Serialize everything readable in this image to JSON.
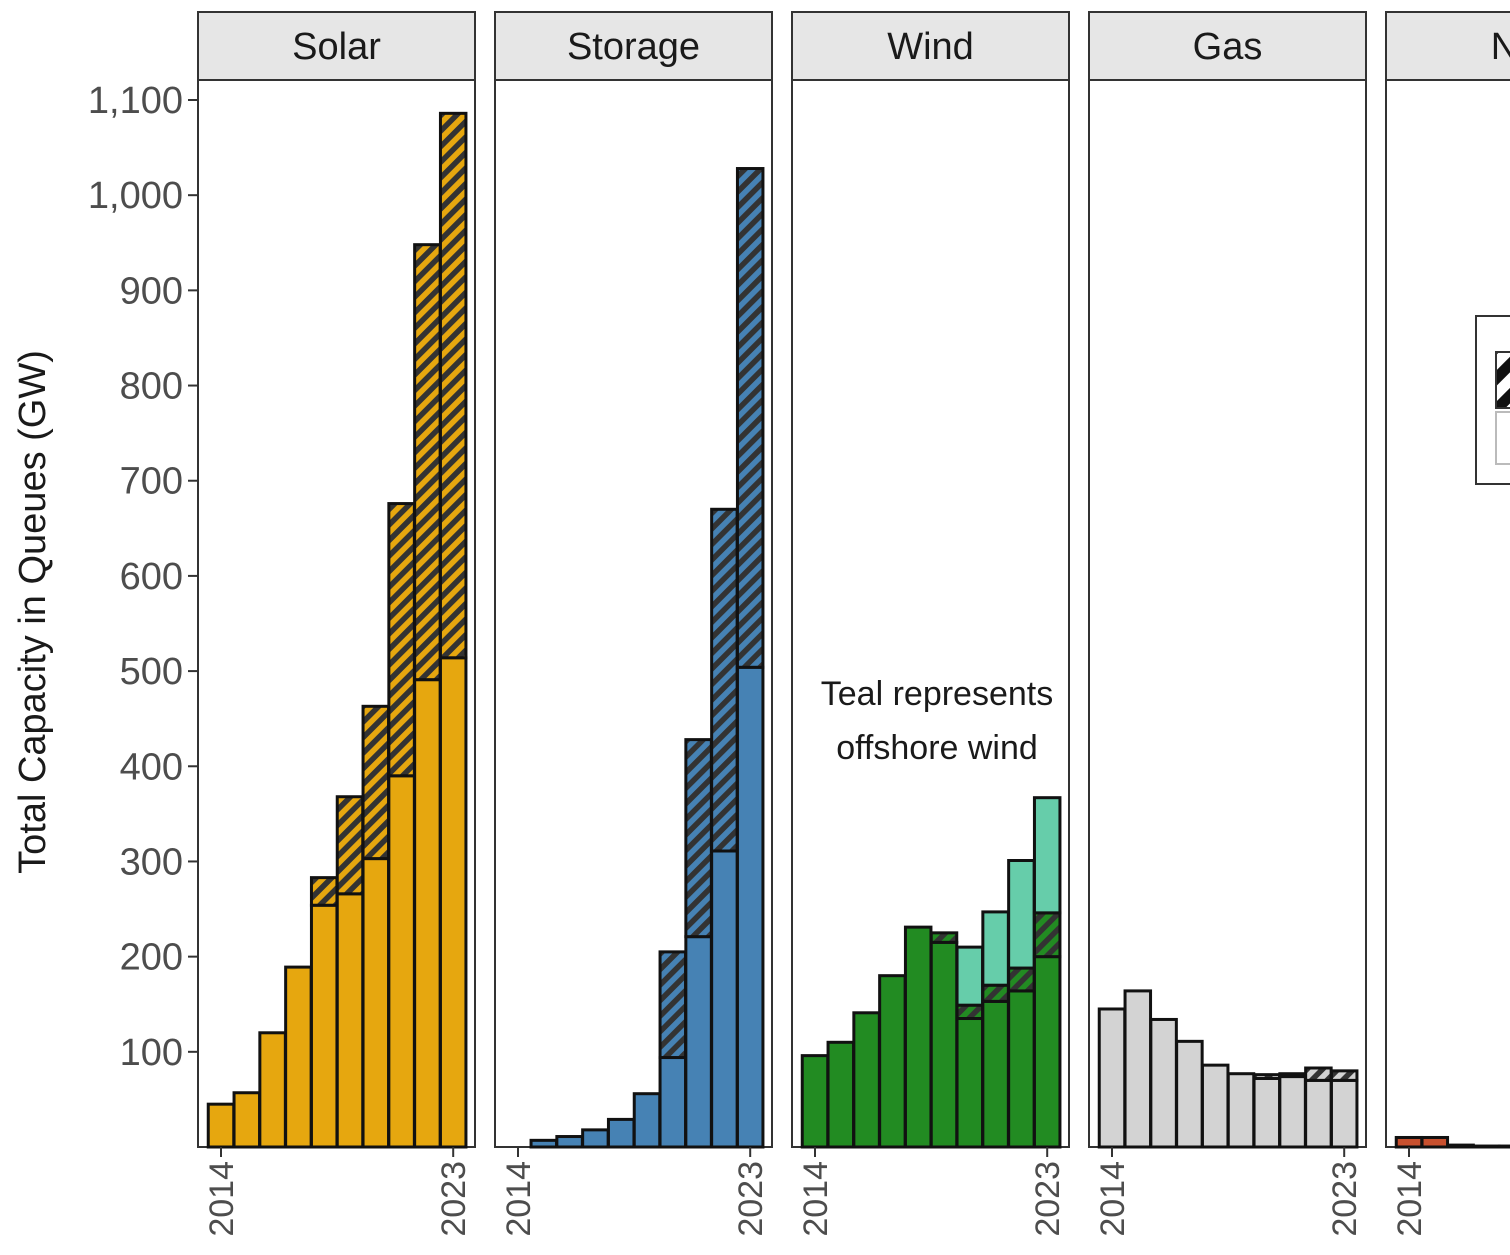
{
  "chart_data": {
    "type": "bar",
    "stacked": true,
    "faceted": true,
    "ylabel": "Total Capacity in Queues (GW)",
    "xlabel": "",
    "ylim": [
      0,
      1120
    ],
    "yticks": [
      "100",
      "200",
      "300",
      "400",
      "500",
      "600",
      "700",
      "800",
      "900",
      "1,000",
      "1,100"
    ],
    "ytick_values": [
      100,
      200,
      300,
      400,
      500,
      600,
      700,
      800,
      900,
      1000,
      1100
    ],
    "x": [
      2014,
      2015,
      2016,
      2017,
      2018,
      2019,
      2020,
      2021,
      2022,
      2023
    ],
    "xtick_labels": [
      "2014",
      "2023"
    ],
    "grid": false,
    "hatch_color": "#333333",
    "annotation": {
      "panel": "Wind",
      "lines": [
        "Teal represents",
        "offshore wind"
      ]
    },
    "panels": [
      {
        "name": "Solar",
        "color": "#E6A70F",
        "base": [
          45,
          57,
          120,
          189,
          254,
          266,
          303,
          390,
          491,
          514
        ],
        "hatched": [
          0,
          0,
          0,
          0,
          29,
          102,
          160,
          286,
          457,
          572
        ]
      },
      {
        "name": "Storage",
        "color": "#4682B4",
        "base": [
          0,
          7,
          11,
          18,
          29,
          56,
          94,
          221,
          311,
          504
        ],
        "hatched": [
          0,
          0,
          0,
          0,
          0,
          0,
          111,
          207,
          359,
          524
        ]
      },
      {
        "name": "Wind",
        "color": "#228B22",
        "offshore_color": "#66CDAA",
        "base": [
          96,
          110,
          141,
          180,
          231,
          215,
          135,
          153,
          164,
          200
        ],
        "hatched": [
          0,
          0,
          0,
          0,
          0,
          10,
          14,
          17,
          24,
          46
        ],
        "offshore": [
          0,
          0,
          0,
          0,
          0,
          0,
          61,
          77,
          113,
          121
        ]
      },
      {
        "name": "Gas",
        "color": "#D3D3D3",
        "base": [
          145,
          164,
          134,
          111,
          86,
          77,
          72,
          74,
          70,
          70
        ],
        "hatched": [
          0,
          0,
          0,
          0,
          0,
          0,
          4,
          3,
          13,
          10
        ]
      },
      {
        "name": "Nuc",
        "color": "#C8502E",
        "base": [
          10,
          10,
          2,
          1,
          1,
          0,
          0,
          0,
          0,
          0
        ],
        "hatched": [
          0,
          0,
          0,
          0,
          0,
          0,
          0,
          0,
          0,
          0
        ]
      }
    ]
  }
}
